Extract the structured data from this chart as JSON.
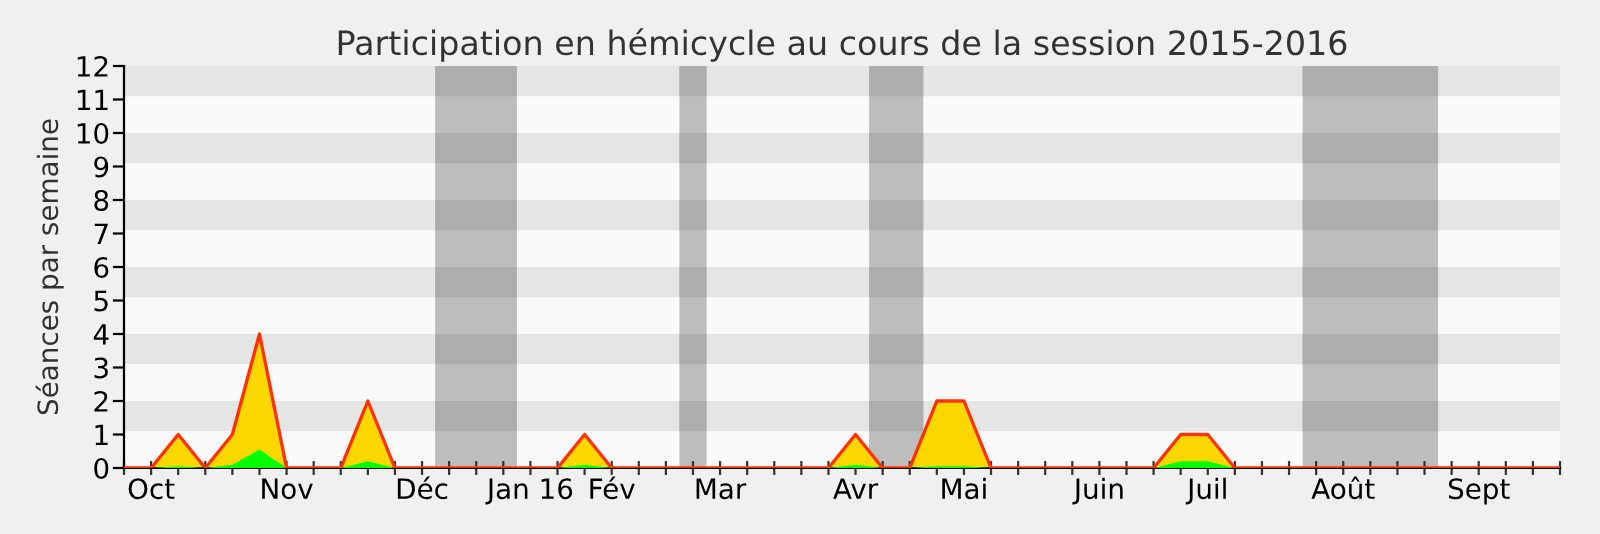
{
  "chart_data": {
    "type": "area",
    "title": "Participation en hémicycle au cours de la session 2015-2016",
    "ylabel": "Séances par semaine",
    "categories": [
      null,
      "Oct",
      null,
      null,
      null,
      null,
      "Nov",
      null,
      null,
      null,
      null,
      "Déc",
      null,
      null,
      null,
      "Jan 16",
      null,
      null,
      "Fév",
      null,
      null,
      null,
      "Mar",
      null,
      null,
      null,
      null,
      "Avr",
      null,
      null,
      null,
      "Mai",
      null,
      null,
      null,
      null,
      "Juin",
      null,
      null,
      null,
      "Juil",
      null,
      null,
      null,
      null,
      "Août",
      null,
      null,
      null,
      null,
      "Sept",
      null,
      null,
      null
    ],
    "series": [
      {
        "color": "#ffd700",
        "values": [
          0,
          0,
          1,
          0,
          1,
          4,
          0,
          0,
          0,
          2,
          0,
          0,
          0,
          0,
          0,
          0,
          0,
          1,
          0,
          0,
          0,
          0,
          0,
          0,
          0,
          0,
          0,
          1,
          0,
          0,
          2,
          2,
          0,
          0,
          0,
          0,
          0,
          0,
          0,
          1,
          1,
          0,
          0,
          0,
          0,
          0,
          0,
          0,
          0,
          0,
          0,
          0,
          0,
          0
        ]
      },
      {
        "color": "#00ff00",
        "values": [
          0,
          0,
          0.05,
          0,
          0.1,
          0.55,
          0,
          0,
          0,
          0.2,
          0,
          0,
          0,
          0,
          0,
          0,
          0,
          0.1,
          0,
          0,
          0,
          0,
          0,
          0,
          0,
          0,
          0,
          0.1,
          0,
          0,
          0.05,
          0.05,
          0,
          0,
          0,
          0,
          0,
          0,
          0,
          0.2,
          0.2,
          0,
          0,
          0,
          0,
          0,
          0,
          0,
          0,
          0,
          0,
          0,
          0,
          0
        ]
      }
    ],
    "ylim": [
      0,
      12
    ],
    "yticks": [
      0,
      1,
      2,
      3,
      4,
      5,
      6,
      7,
      8,
      9,
      10,
      11,
      12
    ]
  }
}
